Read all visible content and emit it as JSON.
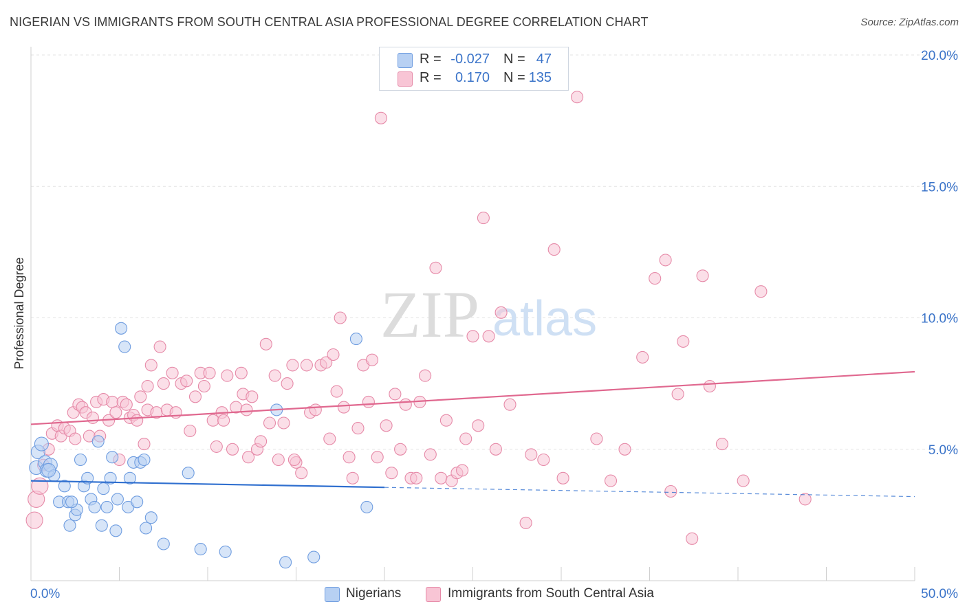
{
  "title": "NIGERIAN VS IMMIGRANTS FROM SOUTH CENTRAL ASIA PROFESSIONAL DEGREE CORRELATION CHART",
  "source": "Source: ZipAtlas.com",
  "watermark": {
    "zip": "ZIP",
    "atlas": "atlas"
  },
  "legend": {
    "r_label": "R =",
    "n_label": "N =",
    "items": [
      {
        "r": "-0.027",
        "n": "47",
        "color": "#b7d0f3",
        "border": "#6f9de0"
      },
      {
        "r": "0.170",
        "n": "135",
        "color": "#f8c5d5",
        "border": "#e68aa8"
      }
    ]
  },
  "bottom_legend": [
    {
      "label": "Nigerians",
      "color": "#b7d0f3",
      "border": "#6f9de0"
    },
    {
      "label": "Immigrants from South Central Asia",
      "color": "#f8c5d5",
      "border": "#e68aa8"
    }
  ],
  "chart_data": {
    "type": "scatter",
    "title": "NIGERIAN VS IMMIGRANTS FROM SOUTH CENTRAL ASIA PROFESSIONAL DEGREE CORRELATION CHART",
    "xlabel": "",
    "ylabel": "Professional Degree",
    "xlim": [
      0,
      50
    ],
    "ylim": [
      0,
      20
    ],
    "x_tick_labels": [
      {
        "value": 0,
        "label": "0.0%"
      },
      {
        "value": 50,
        "label": "50.0%"
      }
    ],
    "y_tick_labels": [
      {
        "value": 5,
        "label": "5.0%"
      },
      {
        "value": 10,
        "label": "10.0%"
      },
      {
        "value": 15,
        "label": "15.0%"
      },
      {
        "value": 20,
        "label": "20.0%"
      }
    ],
    "grid": true,
    "series": [
      {
        "name": "Nigerians",
        "color": "#6f9de0",
        "fill": "#b7d0f3",
        "trend_color": "#2f6fcf",
        "R": -0.027,
        "N": 47,
        "trend": {
          "x0": 0,
          "y0": 3.8,
          "x1": 20,
          "y1": 3.55,
          "x_dash_end": 50,
          "y_dash_end": 3.2
        },
        "points": [
          [
            0.3,
            4.3
          ],
          [
            0.4,
            4.9
          ],
          [
            0.6,
            5.2
          ],
          [
            0.8,
            4.5
          ],
          [
            0.9,
            4.2
          ],
          [
            1.1,
            4.4
          ],
          [
            1.3,
            4.0
          ],
          [
            1.6,
            3.0
          ],
          [
            1.9,
            3.6
          ],
          [
            2.1,
            3.0
          ],
          [
            2.2,
            2.1
          ],
          [
            2.5,
            2.5
          ],
          [
            2.6,
            2.7
          ],
          [
            2.8,
            4.6
          ],
          [
            3.0,
            3.6
          ],
          [
            3.2,
            3.9
          ],
          [
            3.4,
            3.1
          ],
          [
            3.6,
            2.8
          ],
          [
            3.8,
            5.3
          ],
          [
            4.0,
            2.1
          ],
          [
            4.1,
            3.5
          ],
          [
            4.3,
            2.8
          ],
          [
            4.5,
            3.9
          ],
          [
            4.6,
            4.7
          ],
          [
            4.8,
            1.9
          ],
          [
            4.9,
            3.1
          ],
          [
            5.1,
            9.6
          ],
          [
            5.3,
            8.9
          ],
          [
            5.5,
            2.8
          ],
          [
            5.6,
            3.9
          ],
          [
            5.8,
            4.5
          ],
          [
            6.0,
            3.0
          ],
          [
            6.2,
            4.5
          ],
          [
            6.4,
            4.6
          ],
          [
            6.5,
            2.0
          ],
          [
            6.8,
            2.4
          ],
          [
            7.5,
            1.4
          ],
          [
            8.9,
            4.1
          ],
          [
            9.6,
            1.2
          ],
          [
            11.0,
            1.1
          ],
          [
            13.9,
            6.5
          ],
          [
            14.4,
            0.7
          ],
          [
            16.0,
            0.9
          ],
          [
            18.4,
            9.2
          ],
          [
            19.0,
            2.8
          ],
          [
            1.0,
            4.2
          ],
          [
            2.3,
            3.0
          ]
        ]
      },
      {
        "name": "Immigrants from South Central Asia",
        "color": "#e68aa8",
        "fill": "#f8c5d5",
        "trend_color": "#e0688f",
        "R": 0.17,
        "N": 135,
        "trend": {
          "x0": 0,
          "y0": 5.95,
          "x1": 50,
          "y1": 7.95
        },
        "points": [
          [
            0.2,
            2.3
          ],
          [
            0.3,
            3.1
          ],
          [
            0.5,
            3.6
          ],
          [
            0.7,
            4.4
          ],
          [
            1.0,
            5.0
          ],
          [
            1.2,
            5.6
          ],
          [
            1.5,
            5.9
          ],
          [
            1.7,
            5.5
          ],
          [
            1.9,
            5.8
          ],
          [
            2.2,
            5.7
          ],
          [
            2.4,
            6.4
          ],
          [
            2.7,
            6.7
          ],
          [
            2.9,
            6.6
          ],
          [
            3.1,
            6.4
          ],
          [
            3.3,
            5.5
          ],
          [
            3.5,
            6.2
          ],
          [
            3.7,
            6.8
          ],
          [
            3.9,
            5.5
          ],
          [
            4.1,
            6.9
          ],
          [
            4.4,
            6.1
          ],
          [
            4.6,
            6.8
          ],
          [
            4.8,
            6.4
          ],
          [
            5.0,
            4.6
          ],
          [
            5.2,
            6.8
          ],
          [
            5.4,
            6.7
          ],
          [
            5.6,
            6.2
          ],
          [
            5.8,
            6.3
          ],
          [
            6.0,
            6.1
          ],
          [
            6.2,
            7.0
          ],
          [
            6.4,
            5.2
          ],
          [
            6.6,
            6.5
          ],
          [
            6.8,
            8.2
          ],
          [
            7.1,
            6.4
          ],
          [
            7.3,
            8.9
          ],
          [
            7.5,
            7.5
          ],
          [
            7.7,
            6.5
          ],
          [
            8.0,
            7.9
          ],
          [
            8.2,
            6.4
          ],
          [
            8.5,
            7.5
          ],
          [
            8.8,
            7.6
          ],
          [
            9.0,
            5.7
          ],
          [
            9.3,
            7.0
          ],
          [
            9.6,
            7.9
          ],
          [
            9.8,
            7.4
          ],
          [
            10.1,
            7.9
          ],
          [
            10.3,
            6.1
          ],
          [
            10.5,
            5.1
          ],
          [
            10.8,
            6.4
          ],
          [
            11.1,
            7.8
          ],
          [
            11.4,
            5.0
          ],
          [
            11.6,
            6.6
          ],
          [
            11.9,
            7.9
          ],
          [
            12.0,
            7.1
          ],
          [
            12.2,
            6.5
          ],
          [
            12.5,
            7.0
          ],
          [
            12.8,
            5.0
          ],
          [
            13.0,
            5.3
          ],
          [
            13.3,
            9.0
          ],
          [
            13.5,
            6.0
          ],
          [
            13.8,
            7.8
          ],
          [
            14.0,
            4.6
          ],
          [
            14.3,
            6.0
          ],
          [
            14.5,
            7.5
          ],
          [
            14.8,
            8.2
          ],
          [
            15.0,
            4.5
          ],
          [
            15.3,
            4.1
          ],
          [
            15.6,
            8.2
          ],
          [
            15.8,
            6.4
          ],
          [
            16.1,
            6.5
          ],
          [
            16.4,
            8.2
          ],
          [
            16.7,
            8.3
          ],
          [
            16.9,
            5.4
          ],
          [
            17.1,
            8.6
          ],
          [
            17.3,
            7.2
          ],
          [
            17.5,
            10.0
          ],
          [
            17.7,
            6.6
          ],
          [
            18.0,
            4.7
          ],
          [
            18.2,
            3.9
          ],
          [
            18.5,
            5.8
          ],
          [
            18.8,
            8.2
          ],
          [
            19.1,
            6.8
          ],
          [
            19.3,
            8.4
          ],
          [
            19.6,
            4.7
          ],
          [
            19.8,
            17.6
          ],
          [
            20.1,
            5.9
          ],
          [
            20.4,
            4.1
          ],
          [
            20.6,
            7.1
          ],
          [
            20.9,
            5.0
          ],
          [
            21.2,
            6.7
          ],
          [
            21.5,
            3.9
          ],
          [
            21.8,
            3.9
          ],
          [
            22.0,
            6.8
          ],
          [
            22.3,
            7.8
          ],
          [
            22.6,
            4.8
          ],
          [
            22.9,
            11.9
          ],
          [
            23.2,
            3.9
          ],
          [
            23.5,
            6.1
          ],
          [
            23.8,
            3.8
          ],
          [
            24.1,
            4.1
          ],
          [
            24.4,
            4.2
          ],
          [
            24.6,
            5.4
          ],
          [
            25.0,
            9.3
          ],
          [
            25.3,
            5.9
          ],
          [
            25.6,
            13.8
          ],
          [
            25.9,
            9.3
          ],
          [
            26.3,
            5.0
          ],
          [
            26.6,
            10.2
          ],
          [
            27.1,
            6.7
          ],
          [
            28.0,
            2.2
          ],
          [
            28.3,
            4.8
          ],
          [
            29.0,
            4.6
          ],
          [
            29.6,
            12.6
          ],
          [
            30.1,
            3.9
          ],
          [
            30.9,
            18.4
          ],
          [
            32.0,
            5.4
          ],
          [
            32.8,
            3.8
          ],
          [
            33.6,
            5.0
          ],
          [
            34.6,
            8.5
          ],
          [
            35.3,
            11.5
          ],
          [
            35.9,
            12.2
          ],
          [
            36.2,
            3.4
          ],
          [
            36.6,
            7.1
          ],
          [
            36.9,
            9.1
          ],
          [
            37.4,
            1.6
          ],
          [
            38.0,
            11.6
          ],
          [
            38.4,
            7.4
          ],
          [
            39.1,
            5.2
          ],
          [
            40.3,
            3.8
          ],
          [
            41.3,
            11.0
          ],
          [
            43.8,
            3.1
          ],
          [
            14.9,
            4.6
          ],
          [
            10.9,
            6.1
          ],
          [
            6.6,
            7.4
          ],
          [
            2.5,
            5.4
          ],
          [
            12.3,
            4.7
          ]
        ]
      }
    ]
  }
}
